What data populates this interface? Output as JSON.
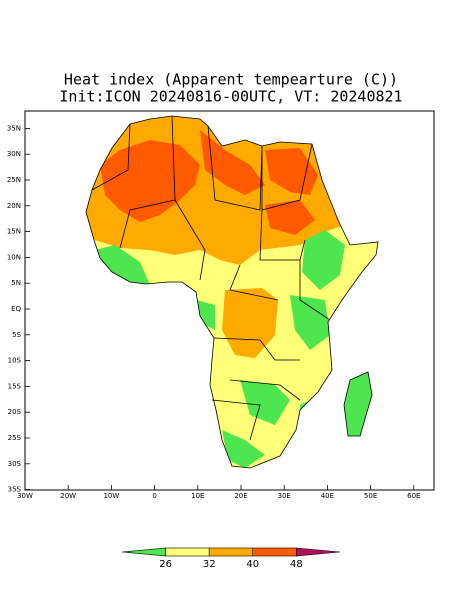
{
  "title": [
    "Heat index (Apparent tempearture (C))",
    "Init:ICON 20240816-00UTC, VT: 20240821"
  ],
  "lat_labels": [
    "35N",
    "30N",
    "25N",
    "20N",
    "15N",
    "10N",
    "5N",
    "EQ",
    "5S",
    "10S",
    "15S",
    "20S",
    "25S",
    "30S",
    "35S"
  ],
  "lon_labels": [
    "30W",
    "20W",
    "10W",
    "0",
    "10E",
    "20E",
    "30E",
    "40E",
    "50E",
    "60E"
  ],
  "colorbar": {
    "ticks": [
      26,
      32,
      40,
      48
    ],
    "colors": [
      "#4ee64e",
      "#ffff78",
      "#ffaa00",
      "#ff5a00",
      "#b0105a"
    ]
  }
}
